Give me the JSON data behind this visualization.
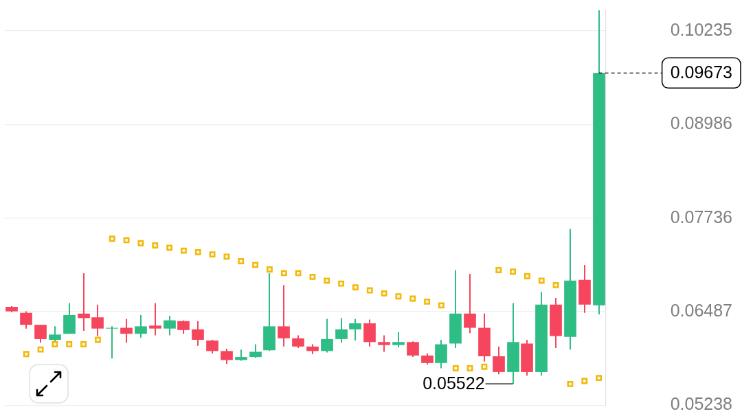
{
  "chart_data": {
    "type": "candlestick",
    "categories": [
      null,
      null,
      null,
      null,
      null,
      null,
      null,
      null,
      null,
      null,
      null,
      null,
      null,
      null,
      null,
      null,
      null,
      null,
      null,
      null,
      null,
      null,
      null,
      null,
      null,
      null,
      null,
      null,
      null,
      null,
      null,
      null,
      null,
      null,
      null,
      null,
      null,
      null,
      null,
      null,
      null,
      null
    ],
    "ohlc": [
      [
        0.0655,
        0.0656,
        0.0648,
        0.0649
      ],
      [
        0.0647,
        0.0649,
        0.0626,
        0.0631
      ],
      [
        0.0631,
        0.0631,
        0.0607,
        0.0612
      ],
      [
        0.0611,
        0.0629,
        0.0609,
        0.0618
      ],
      [
        0.0619,
        0.066,
        0.0619,
        0.0644
      ],
      [
        0.0646,
        0.07,
        0.0623,
        0.064
      ],
      [
        0.0641,
        0.0658,
        0.0616,
        0.0626
      ],
      [
        0.0626,
        0.0629,
        0.0586,
        0.0627
      ],
      [
        0.0627,
        0.0639,
        0.0607,
        0.0619
      ],
      [
        0.0619,
        0.0644,
        0.0614,
        0.0629
      ],
      [
        0.063,
        0.066,
        0.0617,
        0.0626
      ],
      [
        0.0626,
        0.0643,
        0.0617,
        0.0637
      ],
      [
        0.0636,
        0.0637,
        0.0619,
        0.0624
      ],
      [
        0.0625,
        0.0636,
        0.0603,
        0.0611
      ],
      [
        0.061,
        0.0611,
        0.0593,
        0.0596
      ],
      [
        0.0596,
        0.0599,
        0.0579,
        0.0584
      ],
      [
        0.0584,
        0.0598,
        0.0583,
        0.0588
      ],
      [
        0.0588,
        0.0605,
        0.0587,
        0.0595
      ],
      [
        0.0597,
        0.07,
        0.0596,
        0.0629
      ],
      [
        0.0629,
        0.0684,
        0.0602,
        0.0613
      ],
      [
        0.0613,
        0.0617,
        0.06,
        0.0602
      ],
      [
        0.0602,
        0.0605,
        0.0592,
        0.0596
      ],
      [
        0.0596,
        0.0639,
        0.0594,
        0.0612
      ],
      [
        0.0612,
        0.064,
        0.0607,
        0.0625
      ],
      [
        0.0625,
        0.0639,
        0.061,
        0.0633
      ],
      [
        0.0633,
        0.0638,
        0.0602,
        0.0608
      ],
      [
        0.0608,
        0.0617,
        0.0595,
        0.0604
      ],
      [
        0.0604,
        0.0621,
        0.0601,
        0.0608
      ],
      [
        0.0608,
        0.0609,
        0.0588,
        0.059
      ],
      [
        0.059,
        0.0593,
        0.0578,
        0.058
      ],
      [
        0.058,
        0.0611,
        0.0573,
        0.0605
      ],
      [
        0.0606,
        0.0704,
        0.06,
        0.0646
      ],
      [
        0.0646,
        0.0699,
        0.062,
        0.0627
      ],
      [
        0.0627,
        0.0646,
        0.0582,
        0.0589
      ],
      [
        0.0589,
        0.0602,
        0.0565,
        0.0568
      ],
      [
        0.0568,
        0.066,
        0.05522,
        0.0608
      ],
      [
        0.0606,
        0.0611,
        0.0563,
        0.0568
      ],
      [
        0.0568,
        0.0675,
        0.0563,
        0.0658
      ],
      [
        0.0658,
        0.0667,
        0.06,
        0.0616
      ],
      [
        0.0615,
        0.0759,
        0.0598,
        0.069
      ],
      [
        0.0691,
        0.0711,
        0.0647,
        0.0658
      ],
      [
        0.0657,
        0.1051,
        0.0645,
        0.09673
      ]
    ],
    "colors": [
      "#f6465d",
      "#f6465d",
      "#f6465d",
      "#2ebd85",
      "#2ebd85",
      "#f6465d",
      "#f6465d",
      "#2ebd85",
      "#f6465d",
      "#2ebd85",
      "#f6465d",
      "#2ebd85",
      "#f6465d",
      "#f6465d",
      "#f6465d",
      "#f6465d",
      "#2ebd85",
      "#2ebd85",
      "#2ebd85",
      "#f6465d",
      "#f6465d",
      "#f6465d",
      "#2ebd85",
      "#2ebd85",
      "#2ebd85",
      "#f6465d",
      "#f6465d",
      "#2ebd85",
      "#f6465d",
      "#f6465d",
      "#2ebd85",
      "#2ebd85",
      "#f6465d",
      "#f6465d",
      "#f6465d",
      "#2ebd85",
      "#f6465d",
      "#2ebd85",
      "#f6465d",
      "#2ebd85",
      "#f6465d",
      "#2ebd85"
    ],
    "series": [
      {
        "type": "scatter",
        "color": "#f0b90b",
        "values": [
          null,
          0.0592,
          0.0598,
          0.0605,
          0.0605,
          0.0605,
          0.0611,
          0.0746,
          0.0744,
          0.074,
          0.0737,
          0.0734,
          0.073,
          0.0728,
          0.0725,
          0.0722,
          0.0716,
          0.0711,
          0.0705,
          0.07,
          0.07,
          0.0695,
          0.069,
          0.0686,
          0.0681,
          0.0677,
          0.0673,
          0.0669,
          0.0666,
          0.0662,
          0.0657,
          0.0573,
          0.0573,
          0.0575,
          0.0704,
          0.0702,
          0.0696,
          0.069,
          0.0684,
          0.0552,
          0.0556,
          0.056
        ]
      }
    ],
    "marker": "square",
    "ylim": [
      0.0523,
      0.1051
    ],
    "yticks": [
      0.05238,
      0.06487,
      0.07736,
      0.08986,
      0.10235
    ],
    "grid": "y",
    "tick_labels": "y",
    "ref_lines": [
      {
        "axis": "y",
        "value": 0.09673,
        "label": "0.09673",
        "line_style": "dashed",
        "color": "#000000"
      }
    ],
    "annotations": [
      "0.05522"
    ]
  }
}
